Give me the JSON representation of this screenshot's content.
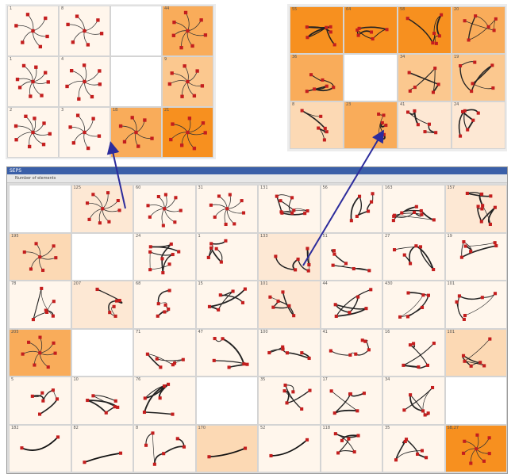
{
  "window": {
    "title": "SEPS",
    "toolbar_text": "Number of elements"
  },
  "colors": {
    "c0": "#ffffff",
    "c1": "#fff6ec",
    "c2": "#fde8d4",
    "c3": "#fcd9b4",
    "c4": "#fbc88f",
    "c5": "#f9ac5a",
    "c6": "#f7901f",
    "node": "#c41e1e",
    "arrow": "#2c2c9c"
  },
  "top_left_panel": {
    "cells": [
      {
        "shade": "c1",
        "label": "1",
        "type": "star"
      },
      {
        "shade": "c1",
        "label": "8",
        "type": "star"
      },
      {
        "shade": "c0",
        "label": "",
        "type": "empty"
      },
      {
        "shade": "c5",
        "label": "44",
        "type": "star"
      },
      {
        "shade": "c1",
        "label": "1",
        "type": "star"
      },
      {
        "shade": "c1",
        "label": "4",
        "type": "star"
      },
      {
        "shade": "c0",
        "label": "",
        "type": "empty"
      },
      {
        "shade": "c4",
        "label": "9",
        "type": "star"
      },
      {
        "shade": "c1",
        "label": "2",
        "type": "star"
      },
      {
        "shade": "c1",
        "label": "3",
        "type": "star"
      },
      {
        "shade": "c5",
        "label": "1B",
        "type": "star"
      },
      {
        "shade": "c6",
        "label": "21",
        "type": "star"
      }
    ]
  },
  "top_right_panel": {
    "cells": [
      {
        "shade": "c6",
        "label": "55",
        "type": "chain"
      },
      {
        "shade": "c6",
        "label": "64",
        "type": "chain"
      },
      {
        "shade": "c6",
        "label": "58",
        "type": "chain"
      },
      {
        "shade": "c5",
        "label": "20",
        "type": "chain"
      },
      {
        "shade": "c5",
        "label": "36",
        "type": "chain"
      },
      {
        "shade": "c0",
        "label": "",
        "type": "empty"
      },
      {
        "shade": "c4",
        "label": "34",
        "type": "chain"
      },
      {
        "shade": "c4",
        "label": "19",
        "type": "chain"
      },
      {
        "shade": "c3",
        "label": "8",
        "type": "chain"
      },
      {
        "shade": "c5",
        "label": "23",
        "type": "chain"
      },
      {
        "shade": "c2",
        "label": "41",
        "type": "chain"
      },
      {
        "shade": "c2",
        "label": "24",
        "type": "chain"
      }
    ]
  },
  "main_grid": {
    "cells": [
      {
        "shade": "c0",
        "label": "",
        "type": "empty"
      },
      {
        "shade": "c2",
        "label": "125",
        "type": "star"
      },
      {
        "shade": "c1",
        "label": "60",
        "type": "star"
      },
      {
        "shade": "c1",
        "label": "31",
        "type": "star"
      },
      {
        "shade": "c1",
        "label": "131",
        "type": "cluster"
      },
      {
        "shade": "c1",
        "label": "56",
        "type": "chain"
      },
      {
        "shade": "c1",
        "label": "163",
        "type": "cluster"
      },
      {
        "shade": "c2",
        "label": "157",
        "type": "cluster"
      },
      {
        "shade": "c3",
        "label": "195",
        "type": "star"
      },
      {
        "shade": "c0",
        "label": "",
        "type": "empty"
      },
      {
        "shade": "c1",
        "label": "24",
        "type": "cluster"
      },
      {
        "shade": "c1",
        "label": "1",
        "type": "chain"
      },
      {
        "shade": "c2",
        "label": "133",
        "type": "chain"
      },
      {
        "shade": "c1",
        "label": "51",
        "type": "chain"
      },
      {
        "shade": "c1",
        "label": "27",
        "type": "chain"
      },
      {
        "shade": "c1",
        "label": "19",
        "type": "chain"
      },
      {
        "shade": "c1",
        "label": "78",
        "type": "chain"
      },
      {
        "shade": "c2",
        "label": "207",
        "type": "chain"
      },
      {
        "shade": "c1",
        "label": "68",
        "type": "chain"
      },
      {
        "shade": "c1",
        "label": "15",
        "type": "chain"
      },
      {
        "shade": "c2",
        "label": "101",
        "type": "chain"
      },
      {
        "shade": "c1",
        "label": "44",
        "type": "chain"
      },
      {
        "shade": "c1",
        "label": "430",
        "type": "chain"
      },
      {
        "shade": "c1",
        "label": "101",
        "type": "chain"
      },
      {
        "shade": "c5",
        "label": "205",
        "type": "star"
      },
      {
        "shade": "c0",
        "label": "",
        "type": "empty"
      },
      {
        "shade": "c1",
        "label": "71",
        "type": "chain"
      },
      {
        "shade": "c1",
        "label": "47",
        "type": "chain"
      },
      {
        "shade": "c1",
        "label": "100",
        "type": "chain"
      },
      {
        "shade": "c1",
        "label": "41",
        "type": "chain"
      },
      {
        "shade": "c1",
        "label": "16",
        "type": "chain"
      },
      {
        "shade": "c3",
        "label": "101",
        "type": "chain"
      },
      {
        "shade": "c1",
        "label": "5",
        "type": "chain"
      },
      {
        "shade": "c1",
        "label": "10",
        "type": "chain"
      },
      {
        "shade": "c1",
        "label": "76",
        "type": "chain"
      },
      {
        "shade": "c0",
        "label": "",
        "type": "empty"
      },
      {
        "shade": "c1",
        "label": "35",
        "type": "chain"
      },
      {
        "shade": "c1",
        "label": "17",
        "type": "chain"
      },
      {
        "shade": "c1",
        "label": "34",
        "type": "chain"
      },
      {
        "shade": "c0",
        "label": "",
        "type": "empty"
      },
      {
        "shade": "c1",
        "label": "182",
        "type": "line"
      },
      {
        "shade": "c1",
        "label": "82",
        "type": "line"
      },
      {
        "shade": "c1",
        "label": "8",
        "type": "chain"
      },
      {
        "shade": "c3",
        "label": "170",
        "type": "line"
      },
      {
        "shade": "c1",
        "label": "52",
        "type": "line"
      },
      {
        "shade": "c1",
        "label": "118",
        "type": "chain"
      },
      {
        "shade": "c1",
        "label": "35",
        "type": "chain"
      },
      {
        "shade": "c6",
        "label": "SB,27",
        "type": "star"
      }
    ]
  }
}
